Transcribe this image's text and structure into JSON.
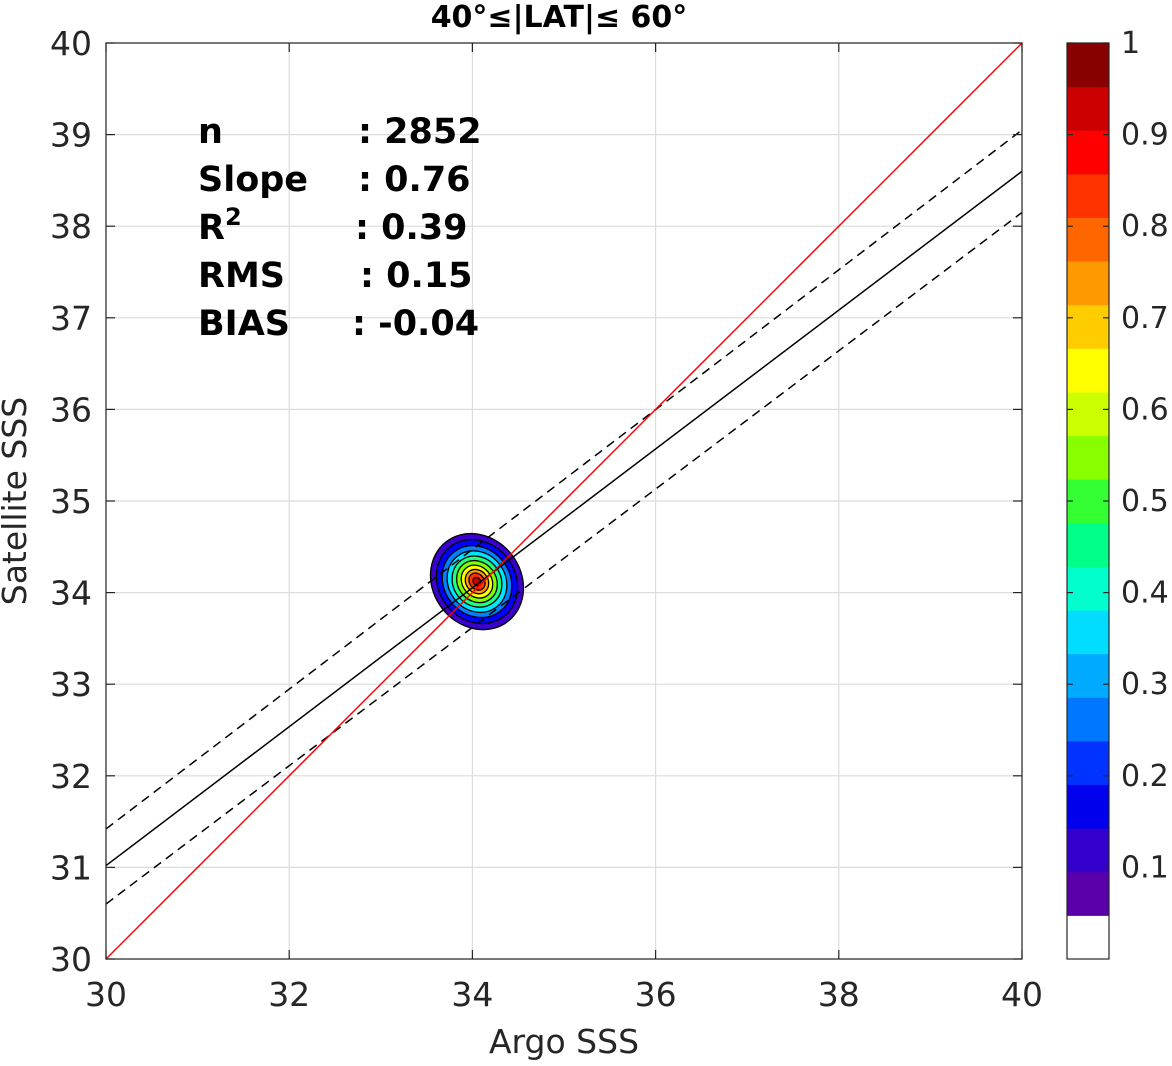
{
  "chart_data": {
    "type": "contour-scatter",
    "title": "40°≤|LAT|≤ 60°",
    "xlabel": "Argo SSS",
    "ylabel": "Satellite SSS",
    "xlim": [
      30,
      40
    ],
    "ylim": [
      30,
      40
    ],
    "xticks": [
      "30",
      "32",
      "34",
      "36",
      "38",
      "40"
    ],
    "yticks": [
      "30",
      "31",
      "32",
      "33",
      "34",
      "35",
      "36",
      "37",
      "38",
      "39",
      "40"
    ],
    "grid": true,
    "stats": [
      {
        "label": "n",
        "value": ": 2852"
      },
      {
        "label": "Slope",
        "value": ": 0.76"
      },
      {
        "label": "R",
        "sup": "2",
        "value": ": 0.39"
      },
      {
        "label": "RMS",
        "value": ": 0.15"
      },
      {
        "label": "BIAS",
        "value": ": -0.04"
      }
    ],
    "lines": {
      "one_to_one": {
        "x": [
          30,
          40
        ],
        "y": [
          30,
          40
        ],
        "color": "#ff0000"
      },
      "fit": {
        "x": [
          30,
          40
        ],
        "y": [
          31.02,
          38.6
        ],
        "color": "#000000"
      },
      "fit_upper": {
        "x": [
          30,
          40
        ],
        "y": [
          31.42,
          39.05
        ],
        "color": "#000000",
        "dash": true
      },
      "fit_lower": {
        "x": [
          30,
          40
        ],
        "y": [
          30.6,
          38.15
        ],
        "color": "#000000",
        "dash": true
      }
    },
    "density": {
      "center": [
        34.05,
        34.12
      ],
      "levels": [
        {
          "level": 0.05,
          "rx": 0.48,
          "ry": 0.55,
          "color": "#3a00cc"
        },
        {
          "level": 0.15,
          "rx": 0.42,
          "ry": 0.48,
          "color": "#0000ff"
        },
        {
          "level": 0.25,
          "rx": 0.36,
          "ry": 0.41,
          "color": "#007fff"
        },
        {
          "level": 0.35,
          "rx": 0.31,
          "ry": 0.35,
          "color": "#00e5ff"
        },
        {
          "level": 0.45,
          "rx": 0.26,
          "ry": 0.29,
          "color": "#1fff7f"
        },
        {
          "level": 0.55,
          "rx": 0.21,
          "ry": 0.24,
          "color": "#7fff00"
        },
        {
          "level": 0.65,
          "rx": 0.16,
          "ry": 0.19,
          "color": "#ffff00"
        },
        {
          "level": 0.75,
          "rx": 0.12,
          "ry": 0.14,
          "color": "#ff9900"
        },
        {
          "level": 0.85,
          "rx": 0.08,
          "ry": 0.1,
          "color": "#ff3300"
        },
        {
          "level": 0.95,
          "rx": 0.04,
          "ry": 0.05,
          "color": "#cc0000"
        }
      ]
    },
    "colorbar": {
      "range": [
        0,
        1
      ],
      "colors": [
        "#ffffff",
        "#5a00aa",
        "#3300cc",
        "#0000ee",
        "#0033ff",
        "#0077ff",
        "#00aaff",
        "#00ddff",
        "#00ffcc",
        "#00ff88",
        "#33ff33",
        "#88ff00",
        "#ccff00",
        "#ffff00",
        "#ffcc00",
        "#ff9900",
        "#ff6600",
        "#ff3300",
        "#ff0000",
        "#cc0000",
        "#880000"
      ],
      "ticks": [
        {
          "value": 0.1,
          "label": "0.1"
        },
        {
          "value": 0.2,
          "label": "0.2"
        },
        {
          "value": 0.3,
          "label": "0.3"
        },
        {
          "value": 0.4,
          "label": "0.4"
        },
        {
          "value": 0.5,
          "label": "0.5"
        },
        {
          "value": 0.6,
          "label": "0.6"
        },
        {
          "value": 0.7,
          "label": "0.7"
        },
        {
          "value": 0.8,
          "label": "0.8"
        },
        {
          "value": 0.9,
          "label": "0.9"
        },
        {
          "value": 1.0,
          "label": "1"
        }
      ]
    }
  }
}
